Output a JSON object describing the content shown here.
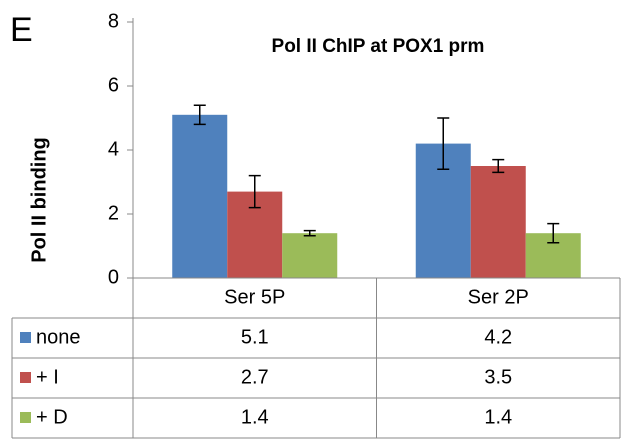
{
  "chart_data": {
    "type": "bar",
    "panel_label": "E",
    "title": "Pol II ChIP at POX1 prm",
    "y_label": "Pol II binding",
    "categories": [
      "Ser 5P",
      "Ser 2P"
    ],
    "series": [
      {
        "name": "none",
        "color": "#4f81bd",
        "values": [
          5.1,
          4.2
        ],
        "errors": [
          0.3,
          0.8
        ]
      },
      {
        "name": "+ I",
        "color": "#c0504d",
        "values": [
          2.7,
          3.5
        ],
        "errors": [
          0.5,
          0.2
        ]
      },
      {
        "name": "+ D",
        "color": "#9bbb59",
        "values": [
          1.4,
          1.4
        ],
        "errors": [
          0.08,
          0.3
        ]
      }
    ],
    "ylim": [
      0,
      8
    ],
    "yticks": [
      0,
      2,
      4,
      6,
      8
    ],
    "grid": false
  }
}
